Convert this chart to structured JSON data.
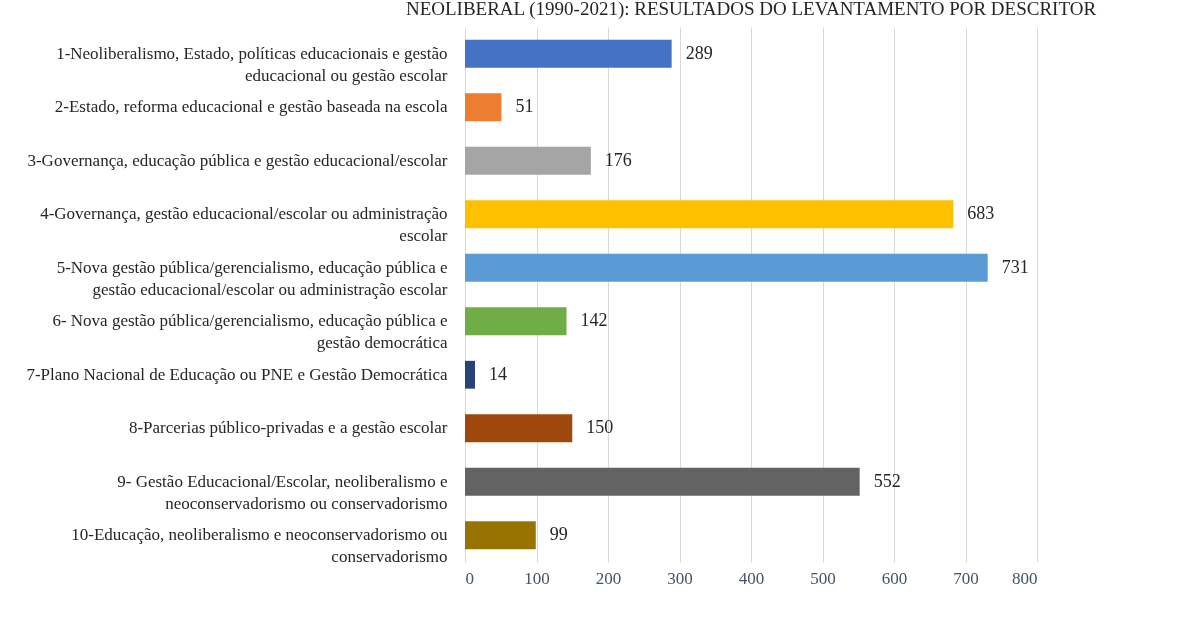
{
  "chart_data": {
    "type": "bar",
    "orientation": "horizontal",
    "title": "NEOLIBERAL (1990-2021): RESULTADOS DO LEVANTAMENTO POR DESCRITOR",
    "categories": [
      "1-Neoliberalismo, Estado, políticas educacionais e gestão educacional ou gestão escolar",
      "2-Estado, reforma educacional e gestão baseada na escola",
      "3-Governança, educação pública e gestão educacional/escolar",
      "4-Governança, gestão educacional/escolar ou administração escolar",
      "5-Nova gestão pública/gerencialismo, educação pública e gestão educacional/escolar ou administração escolar",
      "6- Nova gestão pública/gerencialismo, educação pública e gestão democrática",
      "7-Plano Nacional de Educação ou PNE e Gestão Democrática",
      "8-Parcerias público-privadas e a gestão escolar",
      "9- Gestão Educacional/Escolar, neoliberalismo e neoconservadorismo ou conservadorismo",
      "10-Educação, neoliberalismo e neoconservadorismo ou conservadorismo"
    ],
    "values": [
      289,
      51,
      176,
      683,
      731,
      142,
      14,
      150,
      552,
      99
    ],
    "colors": [
      "#4472c4",
      "#ed7d31",
      "#a5a5a5",
      "#ffc000",
      "#5b9bd5",
      "#70ad47",
      "#264478",
      "#9e480e",
      "#636363",
      "#997300"
    ],
    "xlim": [
      0,
      800
    ],
    "xticks": [
      0,
      100,
      200,
      300,
      400,
      500,
      600,
      700,
      800
    ],
    "grid": "x",
    "data_labels": true
  }
}
